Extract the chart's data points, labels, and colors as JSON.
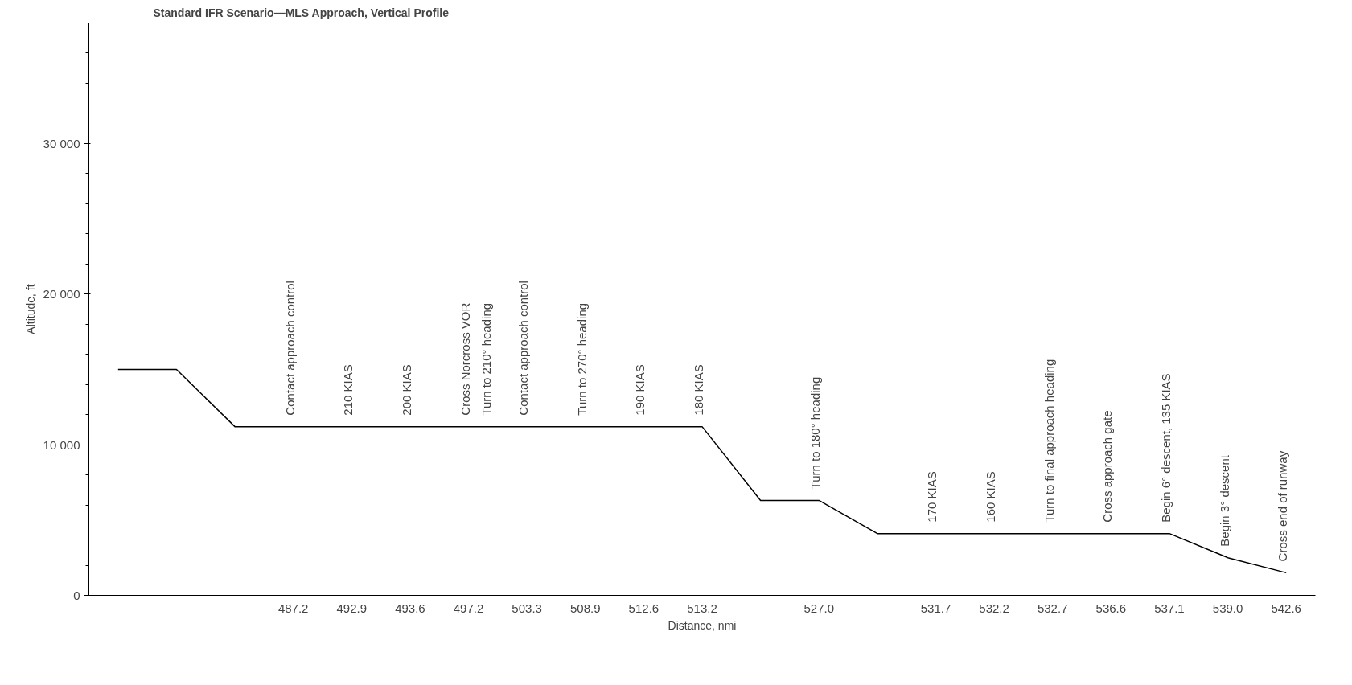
{
  "chart_data": {
    "type": "line",
    "title": "Standard IFR Scenario—MLS Approach, Vertical Profile",
    "xlabel": "Distance, nmi",
    "ylabel": "Altitude, ft",
    "categories": [
      null,
      null,
      null,
      "487.2",
      "492.9",
      "493.6",
      "497.2",
      "503.3",
      "508.9",
      "512.6",
      "513.2",
      null,
      "527.0",
      null,
      "531.7",
      "532.2",
      "532.7",
      "536.6",
      "537.1",
      "539.0",
      "542.6"
    ],
    "series": [
      {
        "color": "#000000",
        "values": [
          15000,
          15000,
          11200,
          11200,
          11200,
          11200,
          11200,
          11200,
          11200,
          11200,
          11200,
          6300,
          6300,
          4100,
          4100,
          4100,
          4100,
          4100,
          4100,
          2500,
          1500
        ]
      }
    ],
    "ylim": [
      0,
      38000
    ],
    "yticks": [
      0,
      {
        "value": 10000,
        "label": "10 000"
      },
      {
        "value": 20000,
        "label": "20 000"
      },
      {
        "value": 30000,
        "label": "30 000"
      }
    ],
    "annotations": [
      {
        "text": "Contact approach control",
        "x": "487.2",
        "y": 11200
      },
      {
        "text": "210 KIAS",
        "x": "492.9",
        "y": 11200
      },
      {
        "text": "200 KIAS",
        "x": "493.6",
        "y": 11200
      },
      {
        "text": "Cross Norcross VOR",
        "x": "497.2",
        "y": 11200
      },
      {
        "text": "Turn to 210° heading",
        "x": "497.2",
        "y": 11200
      },
      {
        "text": "Contact approach control",
        "x": "503.3",
        "y": 11200
      },
      {
        "text": "Turn to 270° heading",
        "x": "508.9",
        "y": 11200
      },
      {
        "text": "190 KIAS",
        "x": "512.6",
        "y": 11200
      },
      {
        "text": "180 KIAS",
        "x": "513.2",
        "y": 11200
      },
      {
        "text": "Turn to 180° heading",
        "x": "527.0",
        "y": 6300
      },
      {
        "text": "170 KIAS",
        "x": "531.7",
        "y": 4100
      },
      {
        "text": "160 KIAS",
        "x": "532.2",
        "y": 4100
      },
      {
        "text": "Turn to final approach heading",
        "x": "532.7",
        "y": 4100
      },
      {
        "text": "Cross approach gate",
        "x": "536.6",
        "y": 4100
      },
      {
        "text": "Begin 6° descent, 135 KIAS",
        "x": "537.1",
        "y": 4100
      },
      {
        "text": "Begin 3° descent",
        "x": "539.0",
        "y": 2500
      },
      {
        "text": "Cross end of runway",
        "x": "542.6",
        "y": 1500
      }
    ],
    "grid": false,
    "line_style": "solid"
  }
}
